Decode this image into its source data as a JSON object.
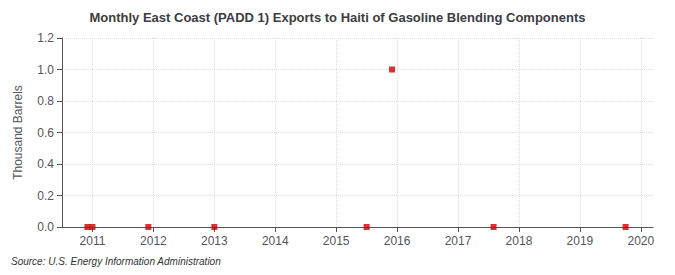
{
  "chart_data": {
    "type": "scatter",
    "title": "Monthly East Coast (PADD 1) Exports to Haiti of Gasoline Blending Components",
    "ylabel": "Thousand Barrels",
    "annotations": [
      "Source: U.S. Energy Information Administration"
    ],
    "x": [
      2010.917,
      2011.0,
      2011.917,
      2013.0,
      2015.5,
      2015.917,
      2017.583,
      2019.75
    ],
    "values": [
      0.0,
      0.0,
      0.0,
      0.0,
      0.0,
      1.0,
      0.0,
      0.0
    ],
    "color": "#cc0000",
    "marker": "square",
    "xlim": [
      2010.5,
      2020.2
    ],
    "xticks": [
      2011,
      2012,
      2013,
      2014,
      2015,
      2016,
      2017,
      2018,
      2019,
      2020
    ],
    "ylim": [
      0.0,
      1.2
    ],
    "yticks": [
      {
        "value": 0,
        "label": "0.0"
      },
      0.2,
      0.4,
      0.6,
      0.8,
      {
        "value": 1,
        "label": "1.0"
      },
      1.2
    ],
    "grid": true
  }
}
